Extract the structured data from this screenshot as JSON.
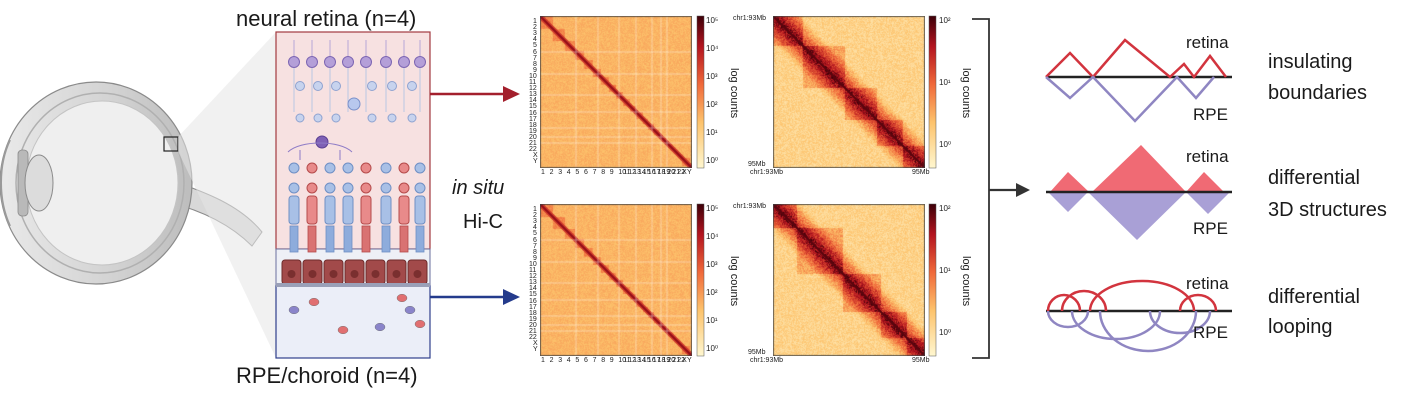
{
  "sample_labels": {
    "top": "neural retina (n=4)",
    "bottom": "RPE/choroid (n=4)"
  },
  "method": {
    "line1": "in situ",
    "line2": "Hi-C"
  },
  "genome_maps": {
    "row_ticks": [
      "1",
      "2",
      "3",
      "4",
      "5",
      "6",
      "7",
      "8",
      "9",
      "10",
      "11",
      "12",
      "13",
      "14",
      "15",
      "16",
      "17",
      "18",
      "19",
      "20",
      "21",
      "22",
      "X",
      "Y"
    ],
    "x_ticks": [
      "1",
      "2",
      "3",
      "4",
      "5",
      "6",
      "7",
      "8",
      "9",
      "10",
      "11",
      "12",
      "13",
      "14",
      "15",
      "16",
      "17",
      "18",
      "19",
      "20",
      "21",
      "22",
      "X",
      "Y"
    ],
    "colorbar_ticks": [
      "10⁵",
      "10⁴",
      "10³",
      "10²",
      "10¹",
      "10⁰"
    ],
    "colorbar_label": "log counts"
  },
  "zoom_maps": {
    "top_left": "chr1:93Mb",
    "bottom_left": "95Mb",
    "bottom_x_left": "chr1:93Mb",
    "bottom_x_right": "95Mb",
    "colorbar_ticks": [
      "10²",
      "10¹",
      "10⁰"
    ],
    "colorbar_label": "log counts"
  },
  "features": [
    {
      "retina": "retina",
      "rpe": "RPE",
      "label_line1": "insulating",
      "label_line2": "boundaries"
    },
    {
      "retina": "retina",
      "rpe": "RPE",
      "label_line1": "differential",
      "label_line2": "3D structures"
    },
    {
      "retina": "retina",
      "rpe": "RPE",
      "label_line1": "differential",
      "label_line2": "looping"
    }
  ],
  "colors": {
    "retina": "#d2343e",
    "rpe": "#8f86c2",
    "retina_fill": "#f06a74",
    "rpe_fill": "#a9a0d6",
    "arrow_top": "#a31f2c",
    "arrow_bottom": "#243b8c"
  }
}
